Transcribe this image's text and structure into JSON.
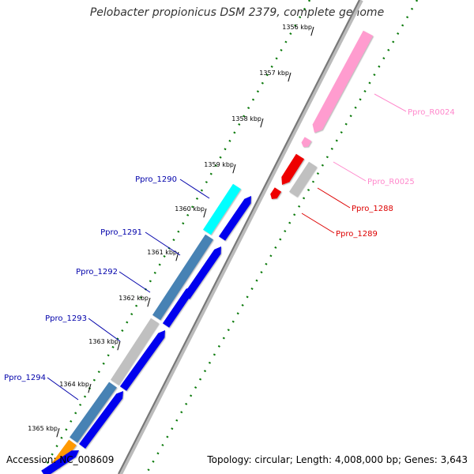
{
  "title": "Pelobacter propionicus DSM 2379, complete genome",
  "footer": {
    "accession": "Accession: NC_008609",
    "summary": "Topology: circular; Length: 4,008,000 bp; Genes: 3,643"
  },
  "colors": {
    "backbone": "#808080",
    "tick": "#0b7a0b",
    "cds": "#0000ee",
    "cds_highlight": "#00ffff",
    "steelblue": "#4682b4",
    "gray": "#c0c0c0",
    "pink": "#ff9ccf",
    "red": "#ee0000",
    "orange": "#ff9900",
    "label_blue": "#0000aa",
    "label_red": "#dd0000",
    "label_pink": "#ff88cc"
  },
  "ticks": [
    {
      "label": "1356 kbp"
    },
    {
      "label": "1357 kbp"
    },
    {
      "label": "1358 kbp"
    },
    {
      "label": "1359 kbp"
    },
    {
      "label": "1360 kbp"
    },
    {
      "label": "1361 kbp"
    },
    {
      "label": "1362 kbp"
    },
    {
      "label": "1363 kbp"
    },
    {
      "label": "1364 kbp"
    },
    {
      "label": "1365 kbp"
    }
  ],
  "gene_labels": [
    {
      "text": "Ppro_R0024",
      "color": "pink"
    },
    {
      "text": "Ppro_R0025",
      "color": "pink"
    },
    {
      "text": "Ppro_1288",
      "color": "red"
    },
    {
      "text": "Ppro_1289",
      "color": "red"
    },
    {
      "text": "Ppro_1290",
      "color": "blue"
    },
    {
      "text": "Ppro_1291",
      "color": "blue"
    },
    {
      "text": "Ppro_1292",
      "color": "blue"
    },
    {
      "text": "Ppro_1293",
      "color": "blue"
    },
    {
      "text": "Ppro_1294",
      "color": "blue"
    }
  ]
}
